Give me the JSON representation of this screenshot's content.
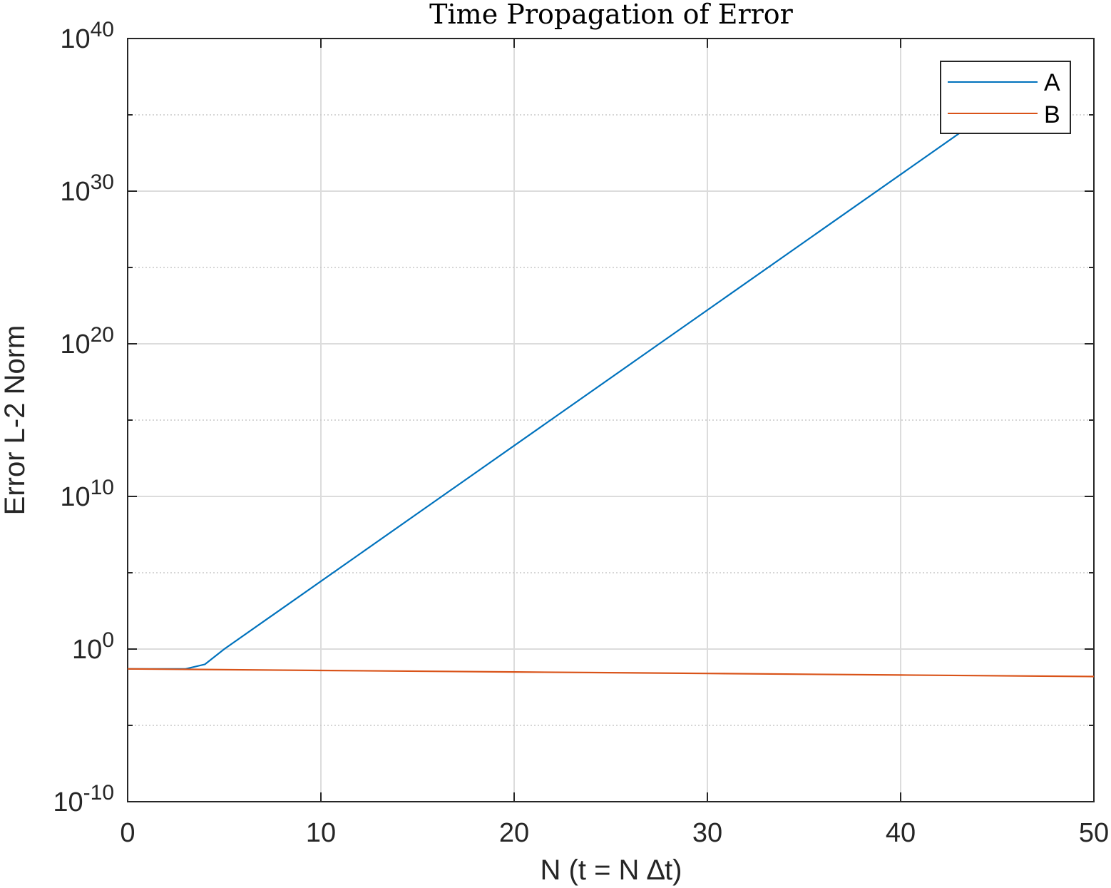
{
  "chart_data": {
    "type": "line",
    "title": "Time Propagation of Error",
    "xlabel": "N (t = N ∆t)",
    "ylabel": "Error L-2 Norm",
    "xlim": [
      0,
      50
    ],
    "ylim_exponents": [
      -10,
      40
    ],
    "yscale": "log",
    "x_ticks": [
      "0",
      "10",
      "20",
      "30",
      "40",
      "50"
    ],
    "y_tick_base": "10",
    "y_tick_exponents": [
      "-10",
      "0",
      "10",
      "20",
      "30",
      "40"
    ],
    "grid": true,
    "legend_position": "top-right",
    "series": [
      {
        "name": "A",
        "color": "#0072BD",
        "log10_values": [
          [
            0,
            -1.3
          ],
          [
            3,
            -1.3
          ],
          [
            4,
            -1.0
          ],
          [
            5,
            0.0
          ],
          [
            48,
            38.2
          ]
        ]
      },
      {
        "name": "B",
        "color": "#D95319",
        "log10_values": [
          [
            0,
            -1.3
          ],
          [
            10,
            -1.4
          ],
          [
            20,
            -1.5
          ],
          [
            30,
            -1.6
          ],
          [
            40,
            -1.7
          ],
          [
            50,
            -1.8
          ]
        ]
      }
    ]
  }
}
